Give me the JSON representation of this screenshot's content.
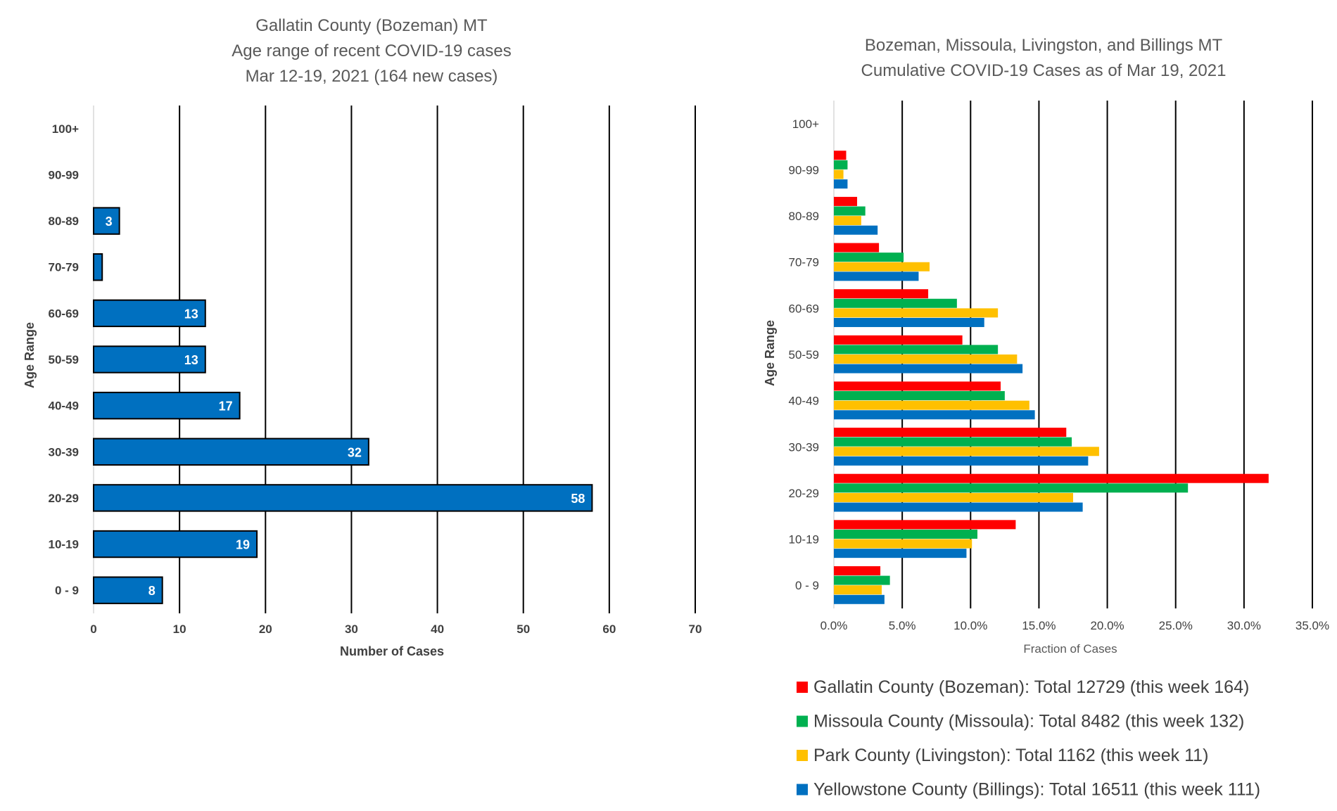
{
  "chart_data": [
    {
      "type": "bar",
      "orientation": "horizontal",
      "title_lines": [
        "Gallatin County (Bozeman) MT",
        "Age range of recent COVID-19 cases",
        "Mar 12-19, 2021 (164 new cases)"
      ],
      "xlabel": "Number of Cases",
      "ylabel": "Age Range",
      "categories": [
        "100+",
        "90-99",
        "80-89",
        "70-79",
        "60-69",
        "50-59",
        "40-49",
        "30-39",
        "20-29",
        "10-19",
        "0 - 9"
      ],
      "values": [
        0,
        0,
        3,
        1,
        13,
        13,
        17,
        32,
        58,
        19,
        8
      ],
      "data_labels": [
        "",
        "",
        "3",
        "",
        "13",
        "13",
        "17",
        "32",
        "58",
        "19",
        "8"
      ],
      "xlim": [
        0,
        70
      ],
      "xticks": [
        "0",
        "10",
        "20",
        "30",
        "40",
        "50",
        "60",
        "70"
      ],
      "bar_color": "#0070C0",
      "grid": "vertical"
    },
    {
      "type": "bar",
      "orientation": "horizontal",
      "title_lines": [
        "Bozeman, Missoula, Livingston, and Billings MT",
        "Cumulative COVID-19 Cases as of Mar 19, 2021"
      ],
      "xlabel": "Fraction of Cases",
      "ylabel": "Age Range",
      "categories": [
        "100+",
        "90-99",
        "80-89",
        "70-79",
        "60-69",
        "50-59",
        "40-49",
        "30-39",
        "20-29",
        "10-19",
        "0 - 9"
      ],
      "xlim": [
        0,
        35
      ],
      "xticks": [
        "0.0%",
        "5.0%",
        "10.0%",
        "15.0%",
        "20.0%",
        "25.0%",
        "30.0%",
        "35.0%"
      ],
      "grid": "vertical",
      "legend_position": "bottom",
      "series": [
        {
          "name": "Gallatin County (Bozeman): Total 12729 (this week 164)",
          "color": "#FF0000",
          "values": [
            0,
            0.9,
            1.7,
            3.3,
            6.9,
            9.4,
            12.2,
            17.0,
            31.8,
            13.3,
            3.4
          ]
        },
        {
          "name": "Missoula County (Missoula): Total 8482 (this week 132)",
          "color": "#00B050",
          "values": [
            0,
            1.0,
            2.3,
            5.1,
            9.0,
            12.0,
            12.5,
            17.4,
            25.9,
            10.5,
            4.1
          ]
        },
        {
          "name": "Park County (Livingston): Total 1162 (this week 11)",
          "color": "#FFC000",
          "values": [
            0,
            0.7,
            2.0,
            7.0,
            12.0,
            13.4,
            14.3,
            19.4,
            17.5,
            10.1,
            3.5
          ]
        },
        {
          "name": "Yellowstone County (Billings): Total 16511 (this week 111)",
          "color": "#0070C0",
          "values": [
            0,
            1.0,
            3.2,
            6.2,
            11.0,
            13.8,
            14.7,
            18.6,
            18.2,
            9.7,
            3.7
          ]
        }
      ]
    }
  ]
}
